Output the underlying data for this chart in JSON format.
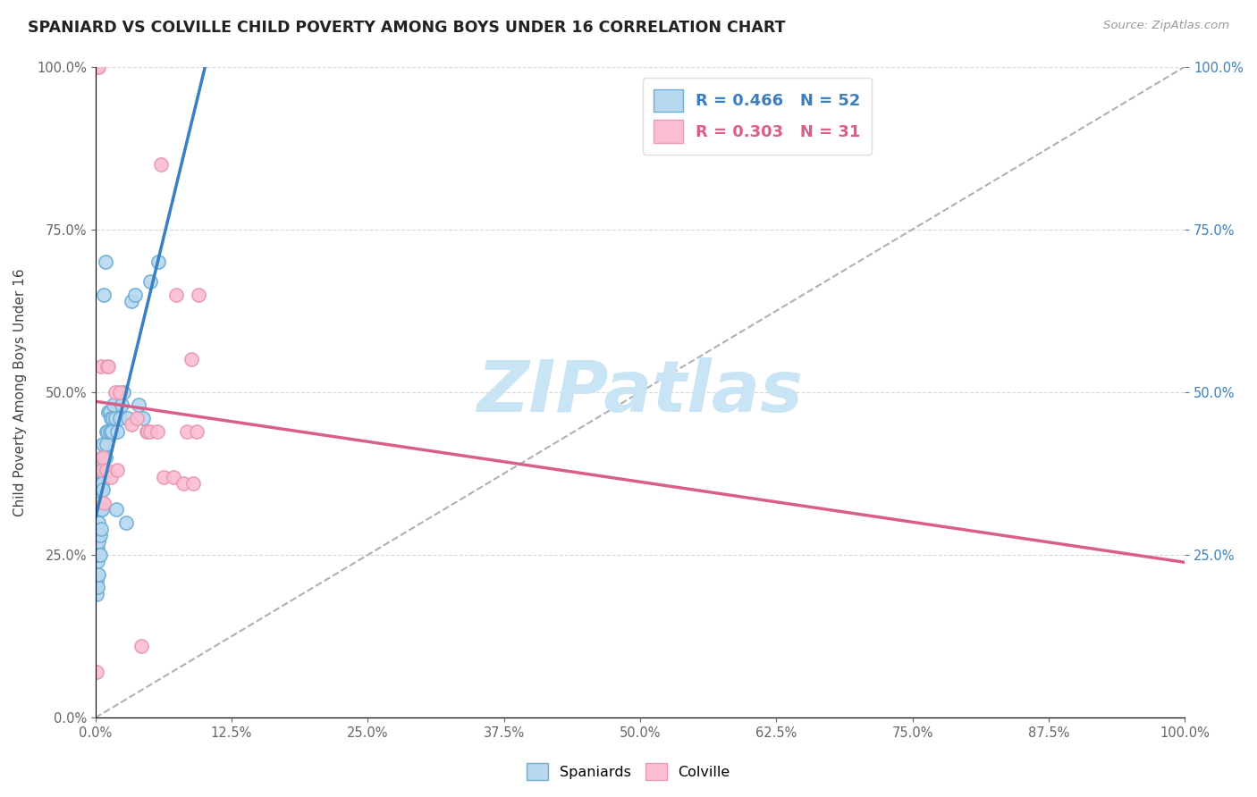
{
  "title": "SPANIARD VS COLVILLE CHILD POVERTY AMONG BOYS UNDER 16 CORRELATION CHART",
  "source": "Source: ZipAtlas.com",
  "ylabel": "Child Poverty Among Boys Under 16",
  "R_spaniard": 0.466,
  "N_spaniard": 52,
  "R_colville": 0.303,
  "N_colville": 31,
  "color_spaniard_face": "#b8d8f0",
  "color_spaniard_edge": "#6baed6",
  "color_colville_face": "#fbbdd0",
  "color_colville_edge": "#e899b4",
  "color_line_spaniard": "#3a7fc1",
  "color_line_colville": "#d95f8a",
  "color_diagonal": "#b0b0b0",
  "watermark_color": "#c8e4f5",
  "spaniard_x": [
    0.001,
    0.001,
    0.002,
    0.002,
    0.002,
    0.002,
    0.003,
    0.003,
    0.003,
    0.003,
    0.004,
    0.004,
    0.004,
    0.004,
    0.005,
    0.005,
    0.005,
    0.005,
    0.006,
    0.006,
    0.006,
    0.007,
    0.007,
    0.007,
    0.008,
    0.008,
    0.009,
    0.009,
    0.01,
    0.01,
    0.011,
    0.012,
    0.013,
    0.013,
    0.014,
    0.015,
    0.016,
    0.017,
    0.018,
    0.019,
    0.02,
    0.022,
    0.024,
    0.026,
    0.028,
    0.03,
    0.033,
    0.036,
    0.04,
    0.044,
    0.05,
    0.058
  ],
  "spaniard_y": [
    0.19,
    0.21,
    0.2,
    0.22,
    0.24,
    0.26,
    0.22,
    0.25,
    0.27,
    0.3,
    0.25,
    0.28,
    0.33,
    0.36,
    0.29,
    0.32,
    0.35,
    0.38,
    0.32,
    0.36,
    0.4,
    0.35,
    0.38,
    0.42,
    0.38,
    0.65,
    0.4,
    0.7,
    0.42,
    0.44,
    0.44,
    0.47,
    0.44,
    0.47,
    0.46,
    0.44,
    0.46,
    0.48,
    0.46,
    0.32,
    0.44,
    0.46,
    0.48,
    0.5,
    0.3,
    0.46,
    0.64,
    0.65,
    0.48,
    0.46,
    0.67,
    0.7
  ],
  "colville_x": [
    0.001,
    0.002,
    0.003,
    0.005,
    0.006,
    0.007,
    0.008,
    0.01,
    0.011,
    0.012,
    0.014,
    0.018,
    0.02,
    0.022,
    0.033,
    0.038,
    0.042,
    0.047,
    0.048,
    0.05,
    0.057,
    0.06,
    0.063,
    0.072,
    0.074,
    0.081,
    0.084,
    0.088,
    0.09,
    0.093,
    0.095
  ],
  "colville_y": [
    0.07,
    1.0,
    1.0,
    0.54,
    0.38,
    0.4,
    0.33,
    0.38,
    0.54,
    0.54,
    0.37,
    0.5,
    0.38,
    0.5,
    0.45,
    0.46,
    0.11,
    0.44,
    0.44,
    0.44,
    0.44,
    0.85,
    0.37,
    0.37,
    0.65,
    0.36,
    0.44,
    0.55,
    0.36,
    0.44,
    0.65
  ],
  "xlim": [
    0.0,
    1.0
  ],
  "ylim": [
    0.0,
    1.0
  ],
  "xticks": [
    0.0,
    0.125,
    0.25,
    0.375,
    0.5,
    0.625,
    0.75,
    0.875,
    1.0
  ],
  "yticks": [
    0.0,
    0.25,
    0.5,
    0.75,
    1.0
  ],
  "right_yticks": [
    0.25,
    0.5,
    0.75,
    1.0
  ]
}
